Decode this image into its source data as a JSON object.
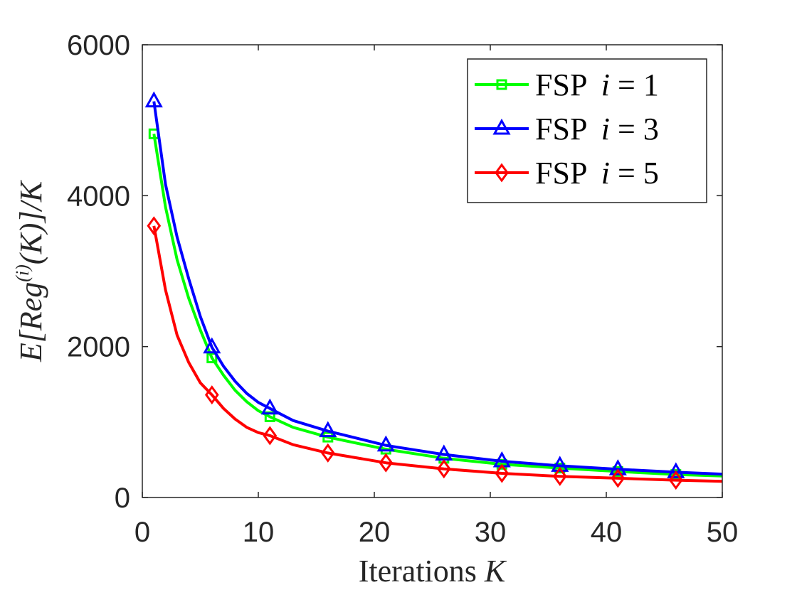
{
  "chart_data": {
    "type": "line",
    "title": "",
    "xlabel": {
      "text": "Iterations ",
      "var": "K"
    },
    "ylabel": {
      "lead": "E[Reg",
      "sup": "(i)",
      "tail": "(K)]/K"
    },
    "xlim": [
      0,
      50
    ],
    "ylim": [
      0,
      6000
    ],
    "xticks": [
      0,
      10,
      20,
      30,
      40,
      50
    ],
    "yticks": [
      0,
      2000,
      4000,
      6000
    ],
    "xtick_labels": [
      "0",
      "10",
      "20",
      "30",
      "40",
      "50"
    ],
    "ytick_labels": [
      "0",
      "2000",
      "4000",
      "6000"
    ],
    "grid": false,
    "legend_position": "top-right",
    "marker_x": [
      1,
      6,
      11,
      16,
      21,
      26,
      31,
      36,
      41,
      46
    ],
    "series": [
      {
        "name": "FSP i = 1",
        "label_prefix": "FSP ",
        "label_var": "i",
        "label_eq": " = 1",
        "color": "#00ff00",
        "marker": "square",
        "x": [
          1,
          2,
          3,
          4,
          5,
          6,
          7,
          8,
          9,
          10,
          11,
          13,
          16,
          21,
          26,
          31,
          36,
          41,
          46,
          50
        ],
        "y": [
          4820,
          3850,
          3150,
          2640,
          2220,
          1850,
          1620,
          1420,
          1270,
          1150,
          1070,
          930,
          800,
          640,
          520,
          440,
          390,
          345,
          305,
          285
        ]
      },
      {
        "name": "FSP i = 3",
        "label_prefix": "FSP ",
        "label_var": "i",
        "label_eq": " = 3",
        "color": "#0000ff",
        "marker": "triangle",
        "x": [
          1,
          2,
          3,
          4,
          5,
          6,
          7,
          8,
          9,
          10,
          11,
          13,
          16,
          21,
          26,
          31,
          36,
          41,
          46,
          50
        ],
        "y": [
          5250,
          4150,
          3450,
          2900,
          2400,
          1990,
          1740,
          1540,
          1380,
          1260,
          1180,
          1020,
          880,
          690,
          570,
          480,
          420,
          375,
          335,
          310
        ]
      },
      {
        "name": "FSP i = 5",
        "label_prefix": "FSP ",
        "label_var": "i",
        "label_eq": " = 5",
        "color": "#ff0000",
        "marker": "diamond",
        "x": [
          1,
          2,
          3,
          4,
          5,
          6,
          7,
          8,
          9,
          10,
          11,
          13,
          16,
          21,
          26,
          31,
          36,
          41,
          46,
          50
        ],
        "y": [
          3600,
          2750,
          2150,
          1790,
          1520,
          1360,
          1180,
          1040,
          930,
          860,
          820,
          700,
          590,
          460,
          380,
          320,
          280,
          255,
          230,
          215
        ]
      }
    ]
  }
}
